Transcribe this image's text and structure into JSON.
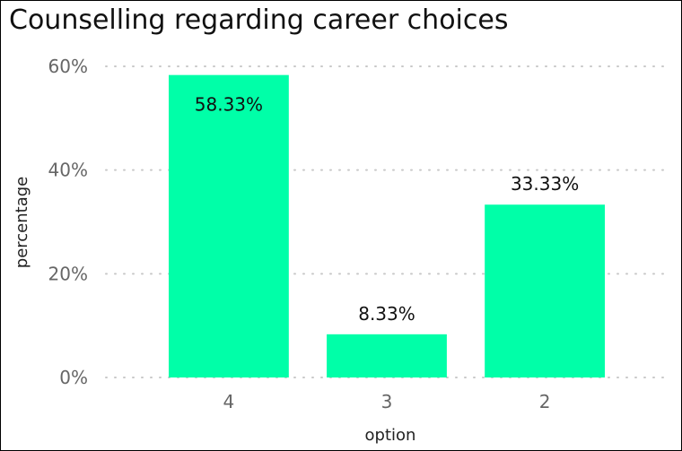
{
  "chart_data": {
    "type": "bar",
    "title": "Counselling regarding career choices",
    "xlabel": "option",
    "ylabel": "percentage",
    "categories": [
      "4",
      "3",
      "2"
    ],
    "values": [
      58.33,
      8.33,
      33.33
    ],
    "data_labels": [
      "58.33%",
      "8.33%",
      "33.33%"
    ],
    "yticks": [
      0,
      20,
      40,
      60
    ],
    "ytick_labels": [
      "0%",
      "20%",
      "40%",
      "60%"
    ],
    "ylim": [
      0,
      60
    ],
    "grid": true,
    "bar_color": "#00ffa8",
    "grid_color": "#c8c8c8"
  }
}
